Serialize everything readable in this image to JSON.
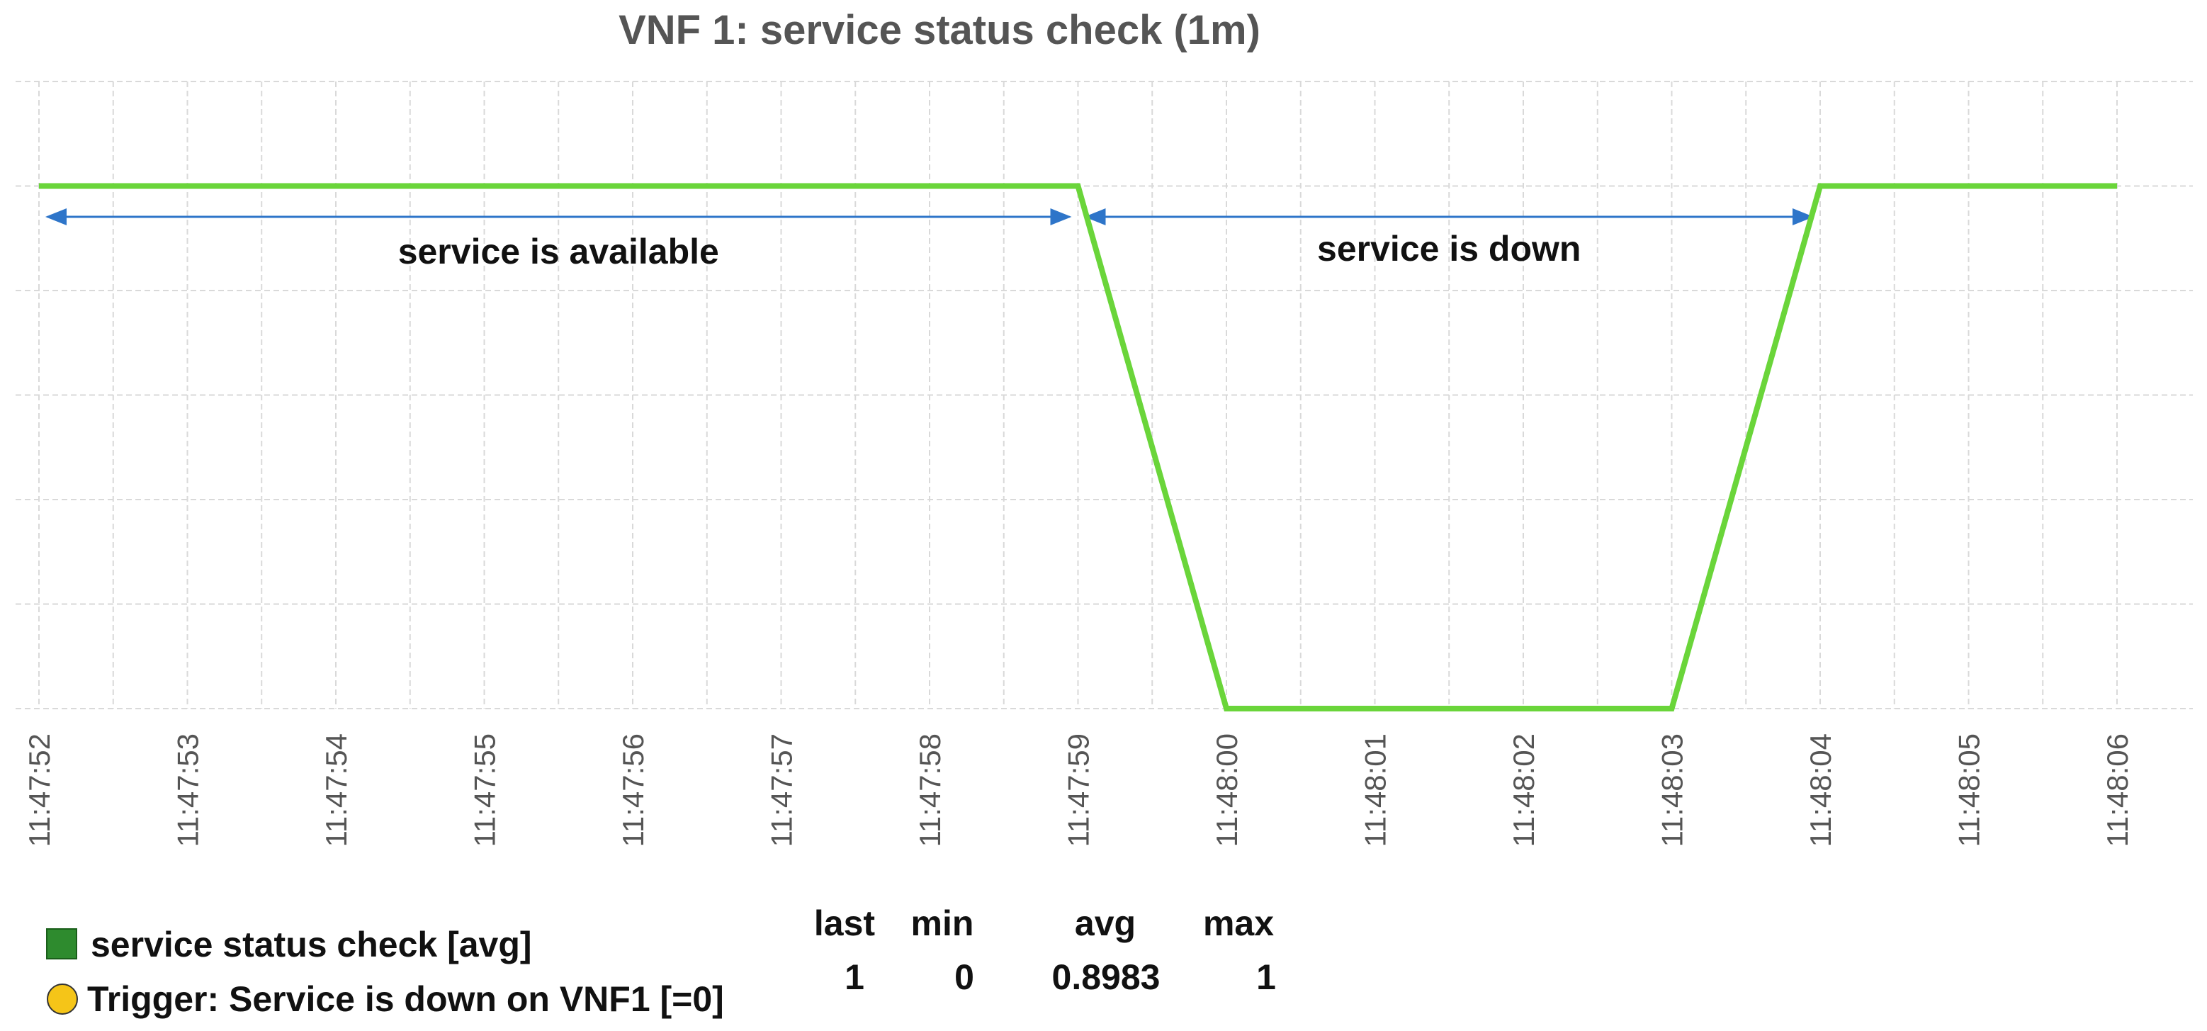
{
  "chart_data": {
    "type": "line",
    "title": "VNF 1: service status check (1m)",
    "xlabel": "",
    "ylabel": "",
    "x": [
      "11:47:52",
      "11:47:53",
      "11:47:54",
      "11:47:55",
      "11:47:56",
      "11:47:57",
      "11:47:58",
      "11:47:59",
      "11:48:00",
      "11:48:01",
      "11:48:02",
      "11:48:03",
      "11:48:04",
      "11:48:05",
      "11:48:06"
    ],
    "series": [
      {
        "name": "service status check [avg]",
        "color": "#6ad53a",
        "values": [
          1,
          1,
          1,
          1,
          1,
          1,
          1,
          1,
          0,
          0,
          0,
          0,
          1,
          1,
          1
        ]
      }
    ],
    "ylim": [
      0,
      1.2
    ],
    "grid": true,
    "annotations": [
      {
        "text": "service is available",
        "from": "11:47:52",
        "to": "11:47:59"
      },
      {
        "text": "service is down",
        "from": "11:47:59",
        "to": "11:48:04"
      }
    ],
    "annotation_color": "#2e75c9",
    "legend": [
      {
        "label": "service status check [avg]",
        "marker": "square",
        "color": "#2e8b2e"
      },
      {
        "label": "Trigger: Service is down on VNF1 [=0]",
        "marker": "circle",
        "color": "#f5c518"
      }
    ],
    "stats": {
      "headers": [
        "last",
        "min",
        "avg",
        "max"
      ],
      "values": [
        "1",
        "0",
        "0.8983",
        "1"
      ]
    }
  }
}
